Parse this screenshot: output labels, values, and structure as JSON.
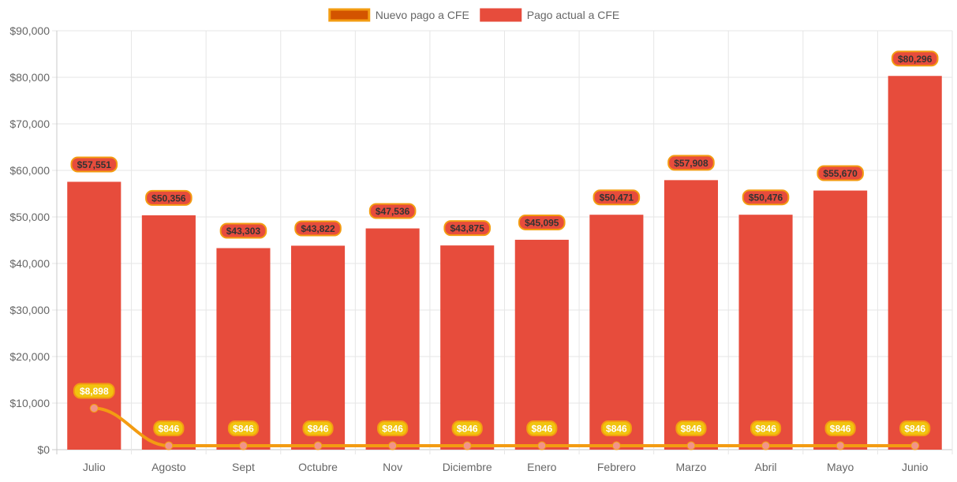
{
  "chart_data": {
    "type": "bar",
    "title": "",
    "xlabel": "",
    "ylabel": "",
    "categories": [
      "Julio",
      "Agosto",
      "Sept",
      "Octubre",
      "Nov",
      "Diciembre",
      "Enero",
      "Febrero",
      "Marzo",
      "Abril",
      "Mayo",
      "Junio"
    ],
    "ylim": [
      0,
      90000
    ],
    "y_ticks": [
      "$0",
      "$10,000",
      "$20,000",
      "$30,000",
      "$40,000",
      "$50,000",
      "$60,000",
      "$70,000",
      "$80,000",
      "$90,000"
    ],
    "grid": true,
    "legend_position": "top-center",
    "series": [
      {
        "name": "Nuevo pago a CFE",
        "type": "line",
        "color": "#f39c12",
        "legend_fill": "#d35400",
        "point_color": "#f1948a",
        "values": [
          8898,
          846,
          846,
          846,
          846,
          846,
          846,
          846,
          846,
          846,
          846,
          846
        ],
        "labels": [
          "$8,898",
          "$846",
          "$846",
          "$846",
          "$846",
          "$846",
          "$846",
          "$846",
          "$846",
          "$846",
          "$846",
          "$846"
        ]
      },
      {
        "name": "Pago actual a CFE",
        "type": "bar",
        "color": "#e74c3c",
        "values": [
          57551,
          50356,
          43303,
          43822,
          47536,
          43875,
          45095,
          50471,
          57908,
          50476,
          55670,
          80296
        ],
        "labels": [
          "$57,551",
          "$50,356",
          "$43,303",
          "$43,822",
          "$47,536",
          "$43,875",
          "$45,095",
          "$50,471",
          "$57,908",
          "$50,476",
          "$55,670",
          "$80,296"
        ]
      }
    ]
  }
}
